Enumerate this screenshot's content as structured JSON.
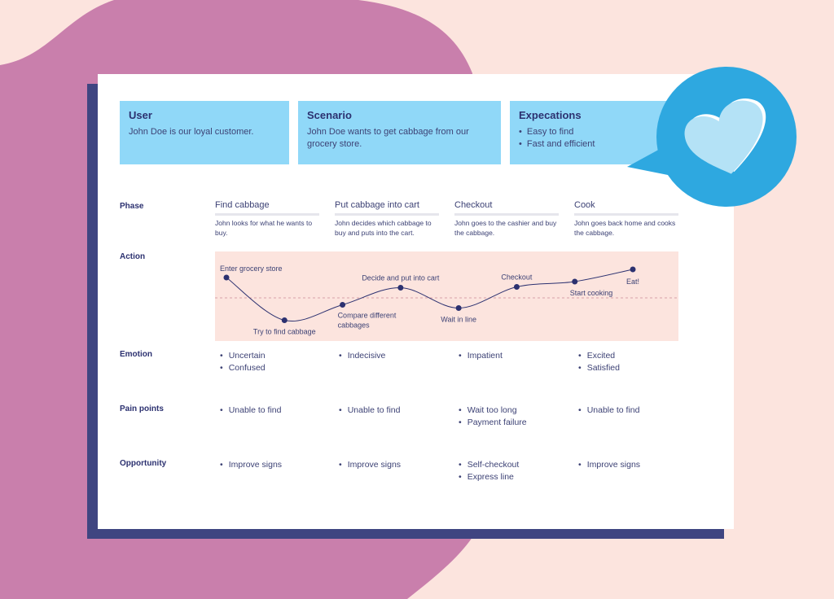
{
  "colors": {
    "background": "#fce4de",
    "blob": "#c97fac",
    "shadow": "#3f4581",
    "info_box": "#90d8f8",
    "bubble": "#2ea8e0",
    "heart": "#b4e2f6",
    "chart_line": "#2c3170"
  },
  "info": [
    {
      "title": "User",
      "description": "John Doe is our loyal customer."
    },
    {
      "title": "Scenario",
      "description": "John Doe wants to get cabbage from our grocery store."
    },
    {
      "title": "Expecations",
      "items": [
        "Easy to find",
        "Fast and efficient"
      ]
    }
  ],
  "row_labels": {
    "phase": "Phase",
    "action": "Action",
    "emotion": "Emotion",
    "pain_points": "Pain points",
    "opportunity": "Opportunity"
  },
  "phases": [
    {
      "title": "Find cabbage",
      "description": "John looks for what he wants to buy.",
      "emotion": [
        "Uncertain",
        "Confused"
      ],
      "pain_points": [
        "Unable to find"
      ],
      "opportunity": [
        "Improve signs"
      ]
    },
    {
      "title": "Put cabbage into cart",
      "description": "John decides which cabbage to buy and puts into the cart.",
      "emotion": [
        "Indecisive"
      ],
      "pain_points": [
        "Unable to find"
      ],
      "opportunity": [
        "Improve signs"
      ]
    },
    {
      "title": "Checkout",
      "description": "John goes to the cashier and buy the cabbage.",
      "emotion": [
        "Impatient"
      ],
      "pain_points": [
        "Wait too long",
        "Payment failure"
      ],
      "opportunity": [
        "Self-checkout",
        "Express line"
      ]
    },
    {
      "title": "Cook",
      "description": "John goes back home and cooks the cabbage.",
      "emotion": [
        "Excited",
        "Satisfied"
      ],
      "pain_points": [
        "Unable to find"
      ],
      "opportunity": [
        "Improve signs"
      ]
    }
  ],
  "chart_data": {
    "type": "line",
    "points": [
      {
        "label": "Enter grocery store",
        "step": 0,
        "emotion": 0.5
      },
      {
        "label": "Try to find cabbage",
        "step": 1,
        "emotion": -0.55
      },
      {
        "label": "Compare different cabbages",
        "step": 2,
        "emotion": -0.17
      },
      {
        "label": "Decide and put into cart",
        "step": 3,
        "emotion": 0.25
      },
      {
        "label": "Wait in line",
        "step": 4,
        "emotion": -0.25
      },
      {
        "label": "Checkout",
        "step": 5,
        "emotion": 0.27
      },
      {
        "label": "Start cooking",
        "step": 6,
        "emotion": 0.4
      },
      {
        "label": "Eat!",
        "step": 7,
        "emotion": 0.7
      }
    ],
    "baseline": 0
  }
}
